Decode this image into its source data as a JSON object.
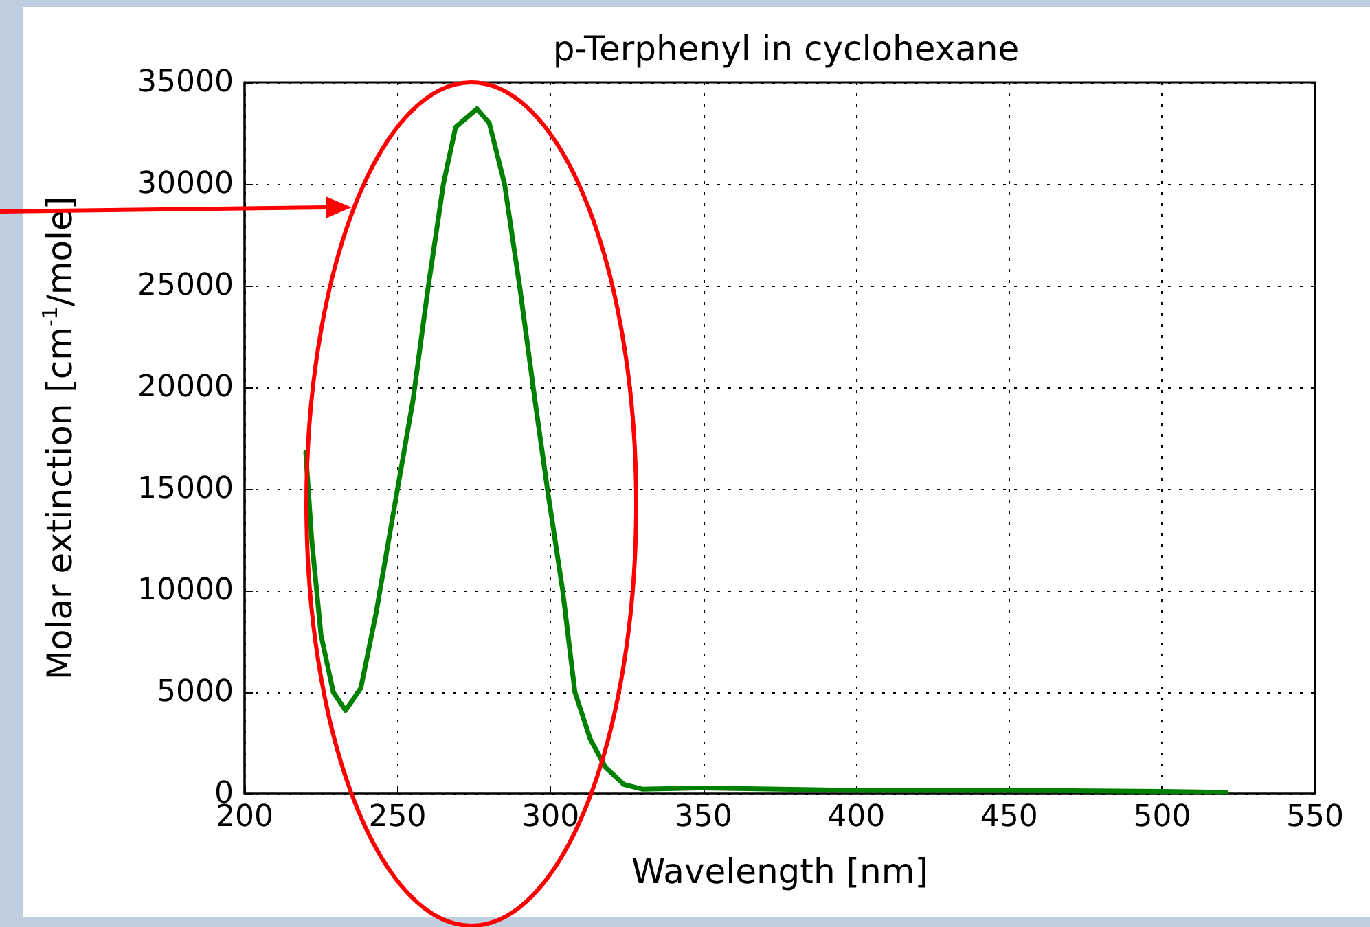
{
  "chart_data": {
    "type": "line",
    "title": "p-Terphenyl in cyclohexane",
    "xlabel": "Wavelength [nm]",
    "ylabel": "Molar extinction [cm$^{-1}$/mole]",
    "xlim": [
      200,
      550
    ],
    "xticks": [
      200,
      250,
      300,
      350,
      400,
      450,
      500,
      550
    ],
    "ylim": [
      0,
      35000
    ],
    "yticks": [
      0,
      5000,
      10000,
      15000,
      20000,
      25000,
      30000,
      35000
    ],
    "grid": true,
    "marker": "none",
    "line_style": "solid",
    "series": [
      {
        "color": "#008000",
        "x": [
          220,
          222,
          225,
          229,
          233,
          238,
          243,
          250,
          255,
          260,
          265,
          269,
          276,
          280,
          285,
          290,
          295,
          299,
          304,
          308,
          313,
          318,
          324,
          330,
          350,
          400,
          450,
          500,
          521
        ],
        "values": [
          16800,
          12400,
          7800,
          5000,
          4100,
          5200,
          8900,
          15000,
          19300,
          24900,
          30000,
          32800,
          33700,
          33000,
          30000,
          24900,
          19300,
          15000,
          10000,
          5000,
          2700,
          1300,
          460,
          230,
          290,
          170,
          170,
          120,
          70
        ]
      }
    ]
  }
}
